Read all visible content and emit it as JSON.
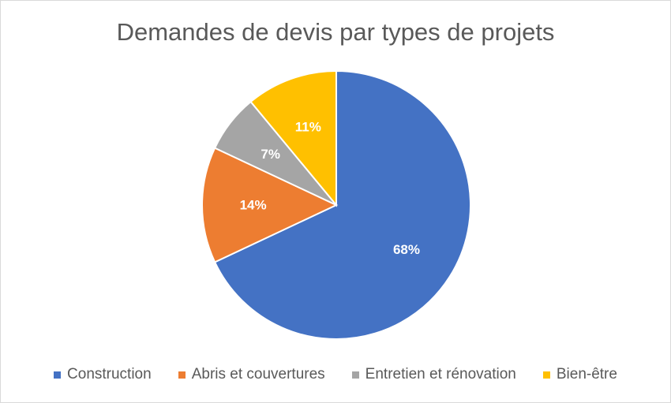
{
  "chart_data": {
    "type": "pie",
    "title": "Demandes de devis par types de projets",
    "start_angle_deg": 0,
    "direction": "clockwise",
    "legend_position": "bottom",
    "slices": [
      {
        "label": "Construction",
        "value": 68,
        "display": "68%",
        "color": "#4472c4"
      },
      {
        "label": "Abris et couvertures",
        "value": 14,
        "display": "14%",
        "color": "#ed7d31"
      },
      {
        "label": "Entretien et rénovation",
        "value": 7,
        "display": "7%",
        "color": "#a5a5a5"
      },
      {
        "label": "Bien-être",
        "value": 11,
        "display": "11%",
        "color": "#ffc000"
      }
    ]
  }
}
